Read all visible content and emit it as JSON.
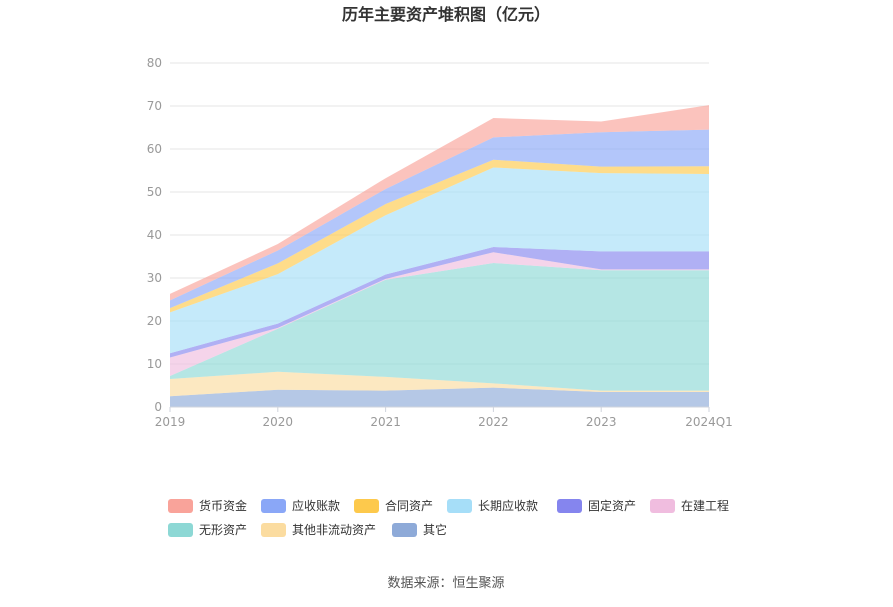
{
  "chart_data": {
    "type": "area",
    "stacked": true,
    "title": "历年主要资产堆积图（亿元）",
    "categories": [
      "2019",
      "2020",
      "2021",
      "2022",
      "2023",
      "2024Q1"
    ],
    "yticks": [
      "0",
      "10",
      "20",
      "30",
      "40",
      "50",
      "60",
      "70",
      "80"
    ],
    "ylim": [
      0,
      80
    ],
    "grid": true,
    "legend_position": "bottom",
    "series": [
      {
        "name": "其它",
        "color": "#8eaad8",
        "values": [
          2.5,
          4.0,
          3.8,
          4.5,
          3.5,
          3.5
        ]
      },
      {
        "name": "其他非流动资产",
        "color": "#fbdca0",
        "values": [
          4.0,
          4.2,
          3.2,
          1.0,
          0.3,
          0.3
        ]
      },
      {
        "name": "无形资产",
        "color": "#8dd8d5",
        "values": [
          0.7,
          10.0,
          22.6,
          28.0,
          28.0,
          28.0
        ]
      },
      {
        "name": "在建工程",
        "color": "#f0bddf",
        "values": [
          4.3,
          0.2,
          0.2,
          2.5,
          0.2,
          0.2
        ]
      },
      {
        "name": "固定资产",
        "color": "#8585ee",
        "values": [
          1.0,
          1.0,
          1.0,
          1.2,
          4.2,
          4.2
        ]
      },
      {
        "name": "长期应收款",
        "color": "#a6def8",
        "values": [
          9.5,
          11.5,
          13.8,
          18.5,
          18.2,
          18.0
        ]
      },
      {
        "name": "合同资产",
        "color": "#fdc94c",
        "values": [
          1.0,
          2.5,
          2.6,
          1.8,
          1.5,
          1.8
        ]
      },
      {
        "name": "应收账款",
        "color": "#8aa7f7",
        "values": [
          1.8,
          3.0,
          3.5,
          5.2,
          8.0,
          8.5
        ]
      },
      {
        "name": "货币资金",
        "color": "#f9a39a",
        "values": [
          1.5,
          1.5,
          2.5,
          4.5,
          2.5,
          5.7
        ]
      }
    ],
    "legend_order": [
      "货币资金",
      "应收账款",
      "合同资产",
      "长期应收款",
      "固定资产",
      "在建工程",
      "无形资产",
      "其他非流动资产",
      "其它"
    ]
  },
  "footer": {
    "source": "数据来源：恒生聚源"
  }
}
